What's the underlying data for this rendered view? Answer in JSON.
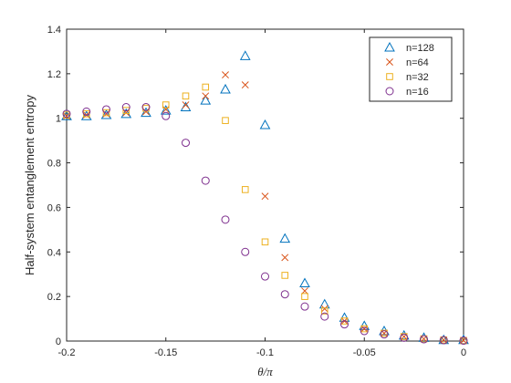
{
  "chart_data": {
    "type": "scatter",
    "title": "",
    "xlabel": "θ/π",
    "ylabel": "Half-system entanglement entropy",
    "xlim": [
      -0.2,
      0
    ],
    "ylim": [
      0,
      1.4
    ],
    "x_ticks": [
      "-0.2",
      "-0.15",
      "-0.1",
      "-0.05",
      "0"
    ],
    "y_ticks": [
      "0",
      "0.2",
      "0.4",
      "0.6",
      "0.8",
      "1",
      "1.2",
      "1.4"
    ],
    "grid": false,
    "legend_position": "top-right",
    "series": [
      {
        "name": "n=128",
        "marker": "triangle",
        "color": "#0072BD",
        "x": [
          -0.2,
          -0.19,
          -0.18,
          -0.17,
          -0.16,
          -0.15,
          -0.14,
          -0.13,
          -0.12,
          -0.11,
          -0.1,
          -0.09,
          -0.08,
          -0.07,
          -0.06,
          -0.05,
          -0.04,
          -0.03,
          -0.02,
          -0.01,
          0
        ],
        "y": [
          1.01,
          1.01,
          1.015,
          1.02,
          1.025,
          1.035,
          1.05,
          1.08,
          1.13,
          1.28,
          0.97,
          0.46,
          0.26,
          0.165,
          0.105,
          0.068,
          0.045,
          0.025,
          0.015,
          0.005,
          0.005
        ]
      },
      {
        "name": "n=64",
        "marker": "x",
        "color": "#D95319",
        "x": [
          -0.2,
          -0.19,
          -0.18,
          -0.17,
          -0.16,
          -0.15,
          -0.14,
          -0.13,
          -0.12,
          -0.11,
          -0.1,
          -0.09,
          -0.08,
          -0.07,
          -0.06,
          -0.05,
          -0.04,
          -0.03,
          -0.02,
          -0.01,
          0
        ],
        "y": [
          1.01,
          1.015,
          1.02,
          1.025,
          1.03,
          1.04,
          1.06,
          1.1,
          1.195,
          1.15,
          0.65,
          0.375,
          0.225,
          0.145,
          0.09,
          0.055,
          0.035,
          0.02,
          0.01,
          0.005,
          0.003
        ]
      },
      {
        "name": "n=32",
        "marker": "square",
        "color": "#EDB120",
        "x": [
          -0.2,
          -0.19,
          -0.18,
          -0.17,
          -0.16,
          -0.15,
          -0.14,
          -0.13,
          -0.12,
          -0.11,
          -0.1,
          -0.09,
          -0.08,
          -0.07,
          -0.06,
          -0.05,
          -0.04,
          -0.03,
          -0.02,
          -0.01,
          0
        ],
        "y": [
          1.015,
          1.02,
          1.025,
          1.035,
          1.045,
          1.06,
          1.1,
          1.14,
          0.99,
          0.68,
          0.445,
          0.295,
          0.2,
          0.135,
          0.09,
          0.055,
          0.035,
          0.02,
          0.01,
          0.005,
          0.002
        ]
      },
      {
        "name": "n=16",
        "marker": "circle",
        "color": "#7E2F8E",
        "x": [
          -0.2,
          -0.19,
          -0.18,
          -0.17,
          -0.16,
          -0.15,
          -0.14,
          -0.13,
          -0.12,
          -0.11,
          -0.1,
          -0.09,
          -0.08,
          -0.07,
          -0.06,
          -0.05,
          -0.04,
          -0.03,
          -0.02,
          -0.01,
          0
        ],
        "y": [
          1.02,
          1.03,
          1.04,
          1.05,
          1.05,
          1.01,
          0.89,
          0.72,
          0.545,
          0.4,
          0.29,
          0.21,
          0.155,
          0.11,
          0.075,
          0.045,
          0.03,
          0.015,
          0.008,
          0.004,
          0.002
        ]
      }
    ]
  }
}
